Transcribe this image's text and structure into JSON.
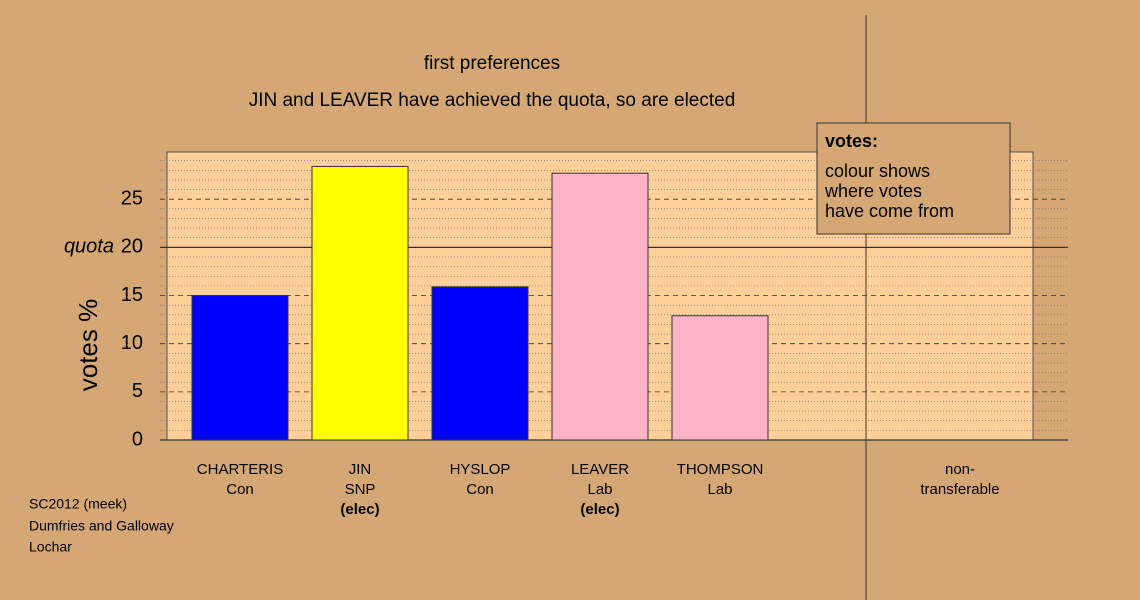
{
  "chart_data": {
    "type": "bar",
    "title": "first preferences",
    "subtitle": "JIN and LEAVER have achieved the quota, so are elected",
    "y_label": "votes %",
    "categories": [
      [
        "CHARTERIS",
        "Con"
      ],
      [
        "JIN",
        "SNP"
      ],
      [
        "HYSLOP",
        "Con"
      ],
      [
        "LEAVER",
        "Lab"
      ],
      [
        "THOMPSON",
        "Lab"
      ],
      null,
      [
        "non-",
        "transferable"
      ]
    ],
    "category_notes": [
      null,
      "(elec)",
      null,
      "(elec)",
      null,
      null,
      null
    ],
    "values": [
      15.0,
      28.4,
      15.9,
      27.7,
      12.9,
      null,
      0
    ],
    "colors": [
      "#0000ff",
      "#ffff00",
      "#0000ff",
      "#ffb3c6",
      "#ffb3c6",
      null,
      "#ffb3c6"
    ],
    "ylim": [
      0,
      29.9
    ],
    "yticks": [
      0,
      5,
      10,
      15,
      20,
      25
    ],
    "minor_yticks": [
      1,
      2,
      3,
      4,
      6,
      7,
      8,
      9,
      11,
      12,
      13,
      14,
      16,
      17,
      18,
      19,
      21,
      22,
      23,
      24,
      26,
      27,
      28,
      29
    ],
    "quota": 20,
    "quota_label": "quota",
    "legend": {
      "title": "votes:",
      "lines": [
        "colour shows",
        "where votes",
        "have come from"
      ]
    },
    "footnotes": [
      "SC2012 (meek)",
      "Dumfries and Galloway",
      "Lochar"
    ]
  }
}
